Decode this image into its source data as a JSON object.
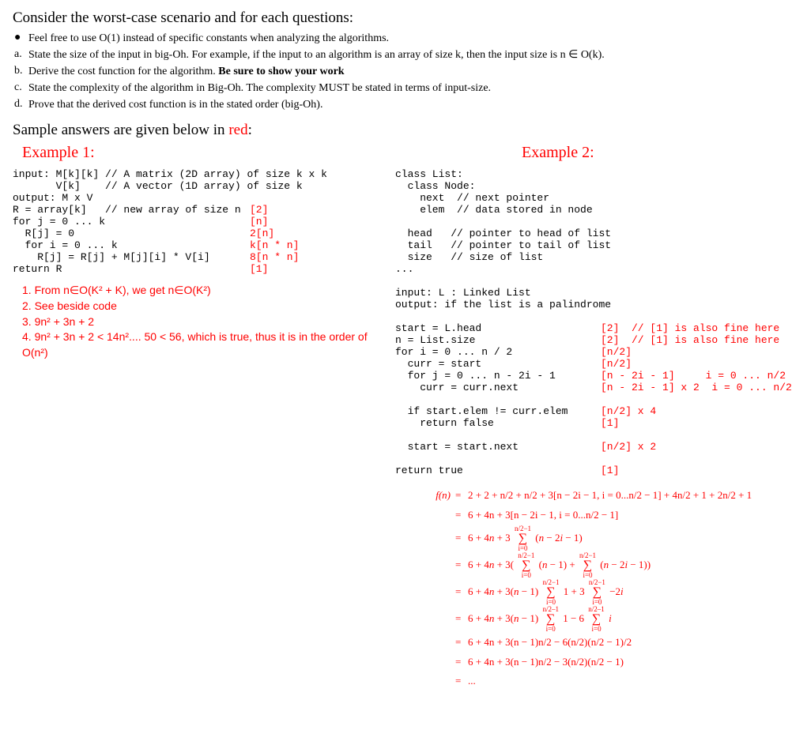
{
  "heading": "Consider the worst-case scenario and for each questions:",
  "bullet": "Feel free to use O(1) instead of specific constants when analyzing the algorithms.",
  "items": [
    "State the size of the input in big-Oh. For example, if the input to an algorithm is an array of size k, then the input size is n ∈ O(k).",
    "Derive the cost function for the algorithm. Be sure to show your work",
    "State the complexity of the algorithm in Big-Oh. The complexity MUST be stated in terms of input-size.",
    "Prove that the derived cost function is in the stated order (big-Oh)."
  ],
  "item_markers": [
    "a.",
    "b.",
    "c.",
    "d."
  ],
  "sample_prefix": "Sample answers are given below in ",
  "sample_suffix": "red",
  "colon": ":",
  "ex1": {
    "title": "Example 1:",
    "lines": [
      {
        "code": "input: M[k][k] // A matrix (2D array) of size k x k",
        "ann": ""
      },
      {
        "code": "       V[k]    // A vector (1D array) of size k",
        "ann": ""
      },
      {
        "code": "output: M x V",
        "ann": ""
      },
      {
        "code": "",
        "ann": ""
      },
      {
        "code": "R = array[k]   // new array of size n",
        "ann": "[2]"
      },
      {
        "code": "",
        "ann": ""
      },
      {
        "code": "for j = 0 ... k",
        "ann": "[n]"
      },
      {
        "code": "  R[j] = 0",
        "ann": "2[n]"
      },
      {
        "code": "  for i = 0 ... k",
        "ann": "k[n * n]"
      },
      {
        "code": "    R[j] = R[j] + M[j][i] * V[i]",
        "ann": "8[n * n]"
      },
      {
        "code": "",
        "ann": ""
      },
      {
        "code": "return R",
        "ann": "[1]"
      }
    ],
    "answers": [
      "1. From n∈O(K² + K), we get n∈O(K²)",
      "2. See beside code",
      "3. 9n² + 3n + 2",
      "4. 9n² + 3n + 2 < 14n².... 50 < 56, which is true, thus it is in the order of O(n²)"
    ]
  },
  "ex2": {
    "title": "Example 2:",
    "class_lines": [
      "class List:",
      "  class Node:",
      "    next  // next pointer",
      "    elem  // data stored in node",
      "",
      "  head   // pointer to head of list",
      "  tail   // pointer to tail of list",
      "  size   // size of list",
      "...",
      "",
      "input: L : Linked List",
      "output: if the list is a palindrome",
      ""
    ],
    "lines": [
      {
        "code": "start = L.head",
        "ann": "[2]  // [1] is also fine here"
      },
      {
        "code": "n = List.size",
        "ann": "[2]  // [1] is also fine here"
      },
      {
        "code": "for i = 0 ... n / 2",
        "ann": "[n/2]"
      },
      {
        "code": "  curr = start",
        "ann": "[n/2]"
      },
      {
        "code": "  for j = 0 ... n - 2i - 1",
        "ann": "[n - 2i - 1]     i = 0 ... n/2"
      },
      {
        "code": "    curr = curr.next",
        "ann": "[n - 2i - 1] x 2  i = 0 ... n/2"
      },
      {
        "code": "",
        "ann": ""
      },
      {
        "code": "  if start.elem != curr.elem",
        "ann": "[n/2] x 4"
      },
      {
        "code": "    return false",
        "ann": "[1]"
      },
      {
        "code": "",
        "ann": ""
      },
      {
        "code": "  start = start.next",
        "ann": "[n/2] x 2"
      },
      {
        "code": "",
        "ann": ""
      },
      {
        "code": "return true",
        "ann": "[1]"
      }
    ],
    "math": [
      {
        "lhs": "f(n)",
        "rhs": "2 + 2 + n/2 + n/2 + 3[n − 2i − 1, i = 0...n/2 − 1] + 4n/2 + 1 + 2n/2 + 1"
      },
      {
        "lhs": "",
        "rhs": "6 + 4n + 3[n − 2i − 1, i = 0...n/2 − 1]"
      },
      {
        "lhs": "",
        "rhs_html": "6 + 4<i>n</i> + 3 <span class=\"sum\"><span class=\"top\">n/2−1</span><span class=\"sig\">∑</span><span class=\"bot\">i=0</span></span> (<i>n</i> − 2<i>i</i> − 1)"
      },
      {
        "lhs": "",
        "rhs_html": "6 + 4<i>n</i> + 3( <span class=\"sum\"><span class=\"top\">n/2−1</span><span class=\"sig\">∑</span><span class=\"bot\">i=0</span></span> (<i>n</i> − 1) + <span class=\"sum\"><span class=\"top\">n/2−1</span><span class=\"sig\">∑</span><span class=\"bot\">i=0</span></span> (<i>n</i> − 2<i>i</i> − 1))"
      },
      {
        "lhs": "",
        "rhs_html": "6 + 4<i>n</i> + 3(<i>n</i> − 1) <span class=\"sum\"><span class=\"top\">n/2−1</span><span class=\"sig\">∑</span><span class=\"bot\">i=0</span></span> 1 + 3 <span class=\"sum\"><span class=\"top\">n/2−1</span><span class=\"sig\">∑</span><span class=\"bot\">i=0</span></span> −2<i>i</i>"
      },
      {
        "lhs": "",
        "rhs_html": "6 + 4<i>n</i> + 3(<i>n</i> − 1) <span class=\"sum\"><span class=\"top\">n/2–1</span><span class=\"sig\">∑</span><span class=\"bot\">i=0</span></span> 1 − 6 <span class=\"sum\"><span class=\"top\">n/2–1</span><span class=\"sig\">∑</span><span class=\"bot\">i=0</span></span> <i>i</i>"
      },
      {
        "lhs": "",
        "rhs": "6 + 4n + 3(n − 1)n/2 − 6(n/2)(n/2 − 1)/2"
      },
      {
        "lhs": "",
        "rhs": "6 + 4n + 3(n − 1)n/2 − 3(n/2)(n/2 − 1)"
      },
      {
        "lhs": "",
        "rhs": "..."
      }
    ]
  },
  "colors": {
    "red": "#ff0000",
    "text": "#000000",
    "bg": "#ffffff"
  }
}
